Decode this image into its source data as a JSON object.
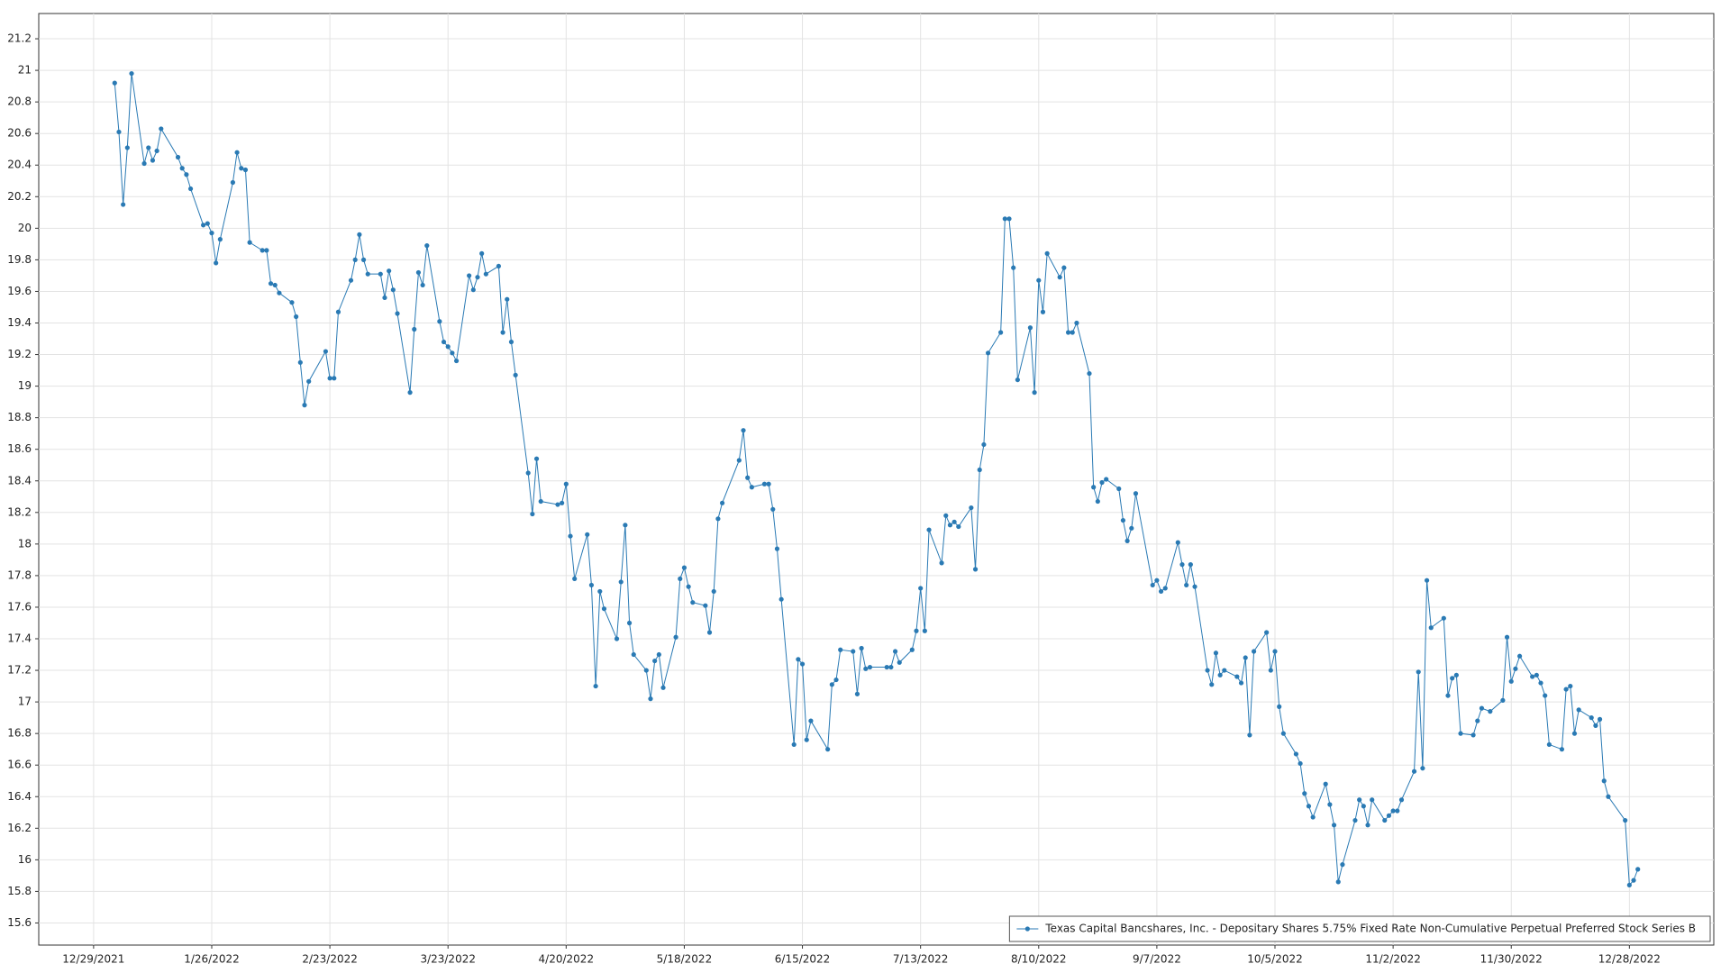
{
  "chart_data": {
    "type": "line",
    "x": [
      "2022-01-03",
      "2022-01-04",
      "2022-01-05",
      "2022-01-06",
      "2022-01-07",
      "2022-01-10",
      "2022-01-11",
      "2022-01-12",
      "2022-01-13",
      "2022-01-14",
      "2022-01-18",
      "2022-01-19",
      "2022-01-20",
      "2022-01-21",
      "2022-01-24",
      "2022-01-25",
      "2022-01-26",
      "2022-01-27",
      "2022-01-28",
      "2022-01-31",
      "2022-02-01",
      "2022-02-02",
      "2022-02-03",
      "2022-02-04",
      "2022-02-07",
      "2022-02-08",
      "2022-02-09",
      "2022-02-10",
      "2022-02-11",
      "2022-02-14",
      "2022-02-15",
      "2022-02-16",
      "2022-02-17",
      "2022-02-18",
      "2022-02-22",
      "2022-02-23",
      "2022-02-24",
      "2022-02-25",
      "2022-02-28",
      "2022-03-01",
      "2022-03-02",
      "2022-03-03",
      "2022-03-04",
      "2022-03-07",
      "2022-03-08",
      "2022-03-09",
      "2022-03-10",
      "2022-03-11",
      "2022-03-14",
      "2022-03-15",
      "2022-03-16",
      "2022-03-17",
      "2022-03-18",
      "2022-03-21",
      "2022-03-22",
      "2022-03-23",
      "2022-03-24",
      "2022-03-25",
      "2022-03-28",
      "2022-03-29",
      "2022-03-30",
      "2022-03-31",
      "2022-04-01",
      "2022-04-04",
      "2022-04-05",
      "2022-04-06",
      "2022-04-07",
      "2022-04-08",
      "2022-04-11",
      "2022-04-12",
      "2022-04-13",
      "2022-04-14",
      "2022-04-18",
      "2022-04-19",
      "2022-04-20",
      "2022-04-21",
      "2022-04-22",
      "2022-04-25",
      "2022-04-26",
      "2022-04-27",
      "2022-04-28",
      "2022-04-29",
      "2022-05-02",
      "2022-05-03",
      "2022-05-04",
      "2022-05-05",
      "2022-05-06",
      "2022-05-09",
      "2022-05-10",
      "2022-05-11",
      "2022-05-12",
      "2022-05-13",
      "2022-05-16",
      "2022-05-17",
      "2022-05-18",
      "2022-05-19",
      "2022-05-20",
      "2022-05-23",
      "2022-05-24",
      "2022-05-25",
      "2022-05-26",
      "2022-05-27",
      "2022-05-31",
      "2022-06-01",
      "2022-06-02",
      "2022-06-03",
      "2022-06-06",
      "2022-06-07",
      "2022-06-08",
      "2022-06-09",
      "2022-06-10",
      "2022-06-13",
      "2022-06-14",
      "2022-06-15",
      "2022-06-16",
      "2022-06-17",
      "2022-06-21",
      "2022-06-22",
      "2022-06-23",
      "2022-06-24",
      "2022-06-27",
      "2022-06-28",
      "2022-06-29",
      "2022-06-30",
      "2022-07-01",
      "2022-07-05",
      "2022-07-06",
      "2022-07-07",
      "2022-07-08",
      "2022-07-11",
      "2022-07-12",
      "2022-07-13",
      "2022-07-14",
      "2022-07-15",
      "2022-07-18",
      "2022-07-19",
      "2022-07-20",
      "2022-07-21",
      "2022-07-22",
      "2022-07-25",
      "2022-07-26",
      "2022-07-27",
      "2022-07-28",
      "2022-07-29",
      "2022-08-01",
      "2022-08-02",
      "2022-08-03",
      "2022-08-04",
      "2022-08-05",
      "2022-08-08",
      "2022-08-09",
      "2022-08-10",
      "2022-08-11",
      "2022-08-12",
      "2022-08-15",
      "2022-08-16",
      "2022-08-17",
      "2022-08-18",
      "2022-08-19",
      "2022-08-22",
      "2022-08-23",
      "2022-08-24",
      "2022-08-25",
      "2022-08-26",
      "2022-08-29",
      "2022-08-30",
      "2022-08-31",
      "2022-09-01",
      "2022-09-02",
      "2022-09-06",
      "2022-09-07",
      "2022-09-08",
      "2022-09-09",
      "2022-09-12",
      "2022-09-13",
      "2022-09-14",
      "2022-09-15",
      "2022-09-16",
      "2022-09-19",
      "2022-09-20",
      "2022-09-21",
      "2022-09-22",
      "2022-09-23",
      "2022-09-26",
      "2022-09-27",
      "2022-09-28",
      "2022-09-29",
      "2022-09-30",
      "2022-10-03",
      "2022-10-04",
      "2022-10-05",
      "2022-10-06",
      "2022-10-07",
      "2022-10-10",
      "2022-10-11",
      "2022-10-12",
      "2022-10-13",
      "2022-10-14",
      "2022-10-17",
      "2022-10-18",
      "2022-10-19",
      "2022-10-20",
      "2022-10-21",
      "2022-10-24",
      "2022-10-25",
      "2022-10-26",
      "2022-10-27",
      "2022-10-28",
      "2022-10-31",
      "2022-11-01",
      "2022-11-02",
      "2022-11-03",
      "2022-11-04",
      "2022-11-07",
      "2022-11-08",
      "2022-11-09",
      "2022-11-10",
      "2022-11-11",
      "2022-11-14",
      "2022-11-15",
      "2022-11-16",
      "2022-11-17",
      "2022-11-18",
      "2022-11-21",
      "2022-11-22",
      "2022-11-23",
      "2022-11-25",
      "2022-11-28",
      "2022-11-29",
      "2022-11-30",
      "2022-12-01",
      "2022-12-02",
      "2022-12-05",
      "2022-12-06",
      "2022-12-07",
      "2022-12-08",
      "2022-12-09",
      "2022-12-12",
      "2022-12-13",
      "2022-12-14",
      "2022-12-15",
      "2022-12-16",
      "2022-12-19",
      "2022-12-20",
      "2022-12-21",
      "2022-12-22",
      "2022-12-23",
      "2022-12-27",
      "2022-12-28",
      "2022-12-29",
      "2022-12-30"
    ],
    "series": [
      {
        "name": "Texas Capital Bancshares, Inc. - Depositary Shares 5.75% Fixed Rate Non-Cumulative Perpetual Preferred Stock Series B",
        "color": "#2a7ab4",
        "values": [
          20.92,
          20.61,
          20.15,
          20.51,
          20.98,
          20.41,
          20.51,
          20.43,
          20.49,
          20.63,
          20.45,
          20.38,
          20.34,
          20.25,
          20.02,
          20.03,
          19.97,
          19.78,
          19.93,
          20.29,
          20.48,
          20.38,
          20.37,
          19.91,
          19.86,
          19.86,
          19.65,
          19.64,
          19.59,
          19.53,
          19.44,
          19.15,
          18.88,
          19.03,
          19.22,
          19.05,
          19.05,
          19.47,
          19.67,
          19.8,
          19.96,
          19.8,
          19.71,
          19.71,
          19.56,
          19.73,
          19.61,
          19.46,
          18.96,
          19.36,
          19.72,
          19.64,
          19.89,
          19.41,
          19.28,
          19.25,
          19.21,
          19.16,
          19.7,
          19.61,
          19.69,
          19.84,
          19.71,
          19.76,
          19.34,
          19.55,
          19.28,
          19.07,
          18.45,
          18.19,
          18.54,
          18.27,
          18.25,
          18.26,
          18.38,
          18.05,
          17.78,
          18.06,
          17.74,
          17.1,
          17.7,
          17.59,
          17.4,
          17.76,
          18.12,
          17.5,
          17.3,
          17.2,
          17.02,
          17.26,
          17.3,
          17.09,
          17.41,
          17.78,
          17.85,
          17.73,
          17.63,
          17.61,
          17.44,
          17.7,
          18.16,
          18.26,
          18.53,
          18.72,
          18.42,
          18.36,
          18.38,
          18.38,
          18.22,
          17.97,
          17.65,
          16.73,
          17.27,
          17.24,
          16.76,
          16.88,
          16.7,
          17.11,
          17.14,
          17.33,
          17.32,
          17.05,
          17.34,
          17.21,
          17.22,
          17.22,
          17.22,
          17.32,
          17.25,
          17.33,
          17.45,
          17.72,
          17.45,
          18.09,
          17.88,
          18.18,
          18.12,
          18.14,
          18.11,
          18.23,
          17.84,
          18.47,
          18.63,
          19.21,
          19.34,
          20.06,
          20.06,
          19.75,
          19.04,
          19.37,
          18.96,
          19.67,
          19.47,
          19.84,
          19.69,
          19.75,
          19.34,
          19.34,
          19.4,
          19.08,
          18.36,
          18.27,
          18.39,
          18.41,
          18.35,
          18.15,
          18.02,
          18.1,
          18.32,
          17.74,
          17.77,
          17.7,
          17.72,
          18.01,
          17.87,
          17.74,
          17.87,
          17.73,
          17.2,
          17.11,
          17.31,
          17.17,
          17.2,
          17.16,
          17.12,
          17.28,
          16.79,
          17.32,
          17.44,
          17.2,
          17.32,
          16.97,
          16.8,
          16.67,
          16.61,
          16.42,
          16.34,
          16.27,
          16.48,
          16.35,
          16.22,
          15.86,
          15.97,
          16.25,
          16.38,
          16.34,
          16.22,
          16.38,
          16.25,
          16.28,
          16.31,
          16.31,
          16.38,
          16.56,
          17.19,
          16.58,
          17.77,
          17.47,
          17.53,
          17.04,
          17.15,
          17.17,
          16.8,
          16.79,
          16.88,
          16.96,
          16.94,
          17.01,
          17.41,
          17.13,
          17.21,
          17.29,
          17.16,
          17.17,
          17.12,
          17.04,
          16.73,
          16.7,
          17.08,
          17.1,
          16.8,
          16.95,
          16.9,
          16.85,
          16.89,
          16.5,
          16.4,
          16.25,
          15.84,
          15.87,
          15.94
        ]
      }
    ],
    "xlim": [
      "2021-12-16",
      "2023-01-17"
    ],
    "xticks": [
      {
        "value": "2021-12-29",
        "label": "12/29/2021"
      },
      {
        "value": "2022-01-26",
        "label": "1/26/2022"
      },
      {
        "value": "2022-02-23",
        "label": "2/23/2022"
      },
      {
        "value": "2022-03-23",
        "label": "3/23/2022"
      },
      {
        "value": "2022-04-20",
        "label": "4/20/2022"
      },
      {
        "value": "2022-05-18",
        "label": "5/18/2022"
      },
      {
        "value": "2022-06-15",
        "label": "6/15/2022"
      },
      {
        "value": "2022-07-13",
        "label": "7/13/2022"
      },
      {
        "value": "2022-08-10",
        "label": "8/10/2022"
      },
      {
        "value": "2022-09-07",
        "label": "9/7/2022"
      },
      {
        "value": "2022-10-05",
        "label": "10/5/2022"
      },
      {
        "value": "2022-11-02",
        "label": "11/2/2022"
      },
      {
        "value": "2022-11-30",
        "label": "11/30/2022"
      },
      {
        "value": "2022-12-28",
        "label": "12/28/2022"
      }
    ],
    "ylim": [
      15.46,
      21.36
    ],
    "yticks": [
      15.6,
      15.8,
      16,
      16.2,
      16.4,
      16.6,
      16.8,
      17,
      17.2,
      17.4,
      17.6,
      17.8,
      18,
      18.2,
      18.4,
      18.6,
      18.8,
      19,
      19.2,
      19.4,
      19.6,
      19.8,
      20,
      20.2,
      20.4,
      20.6,
      20.8,
      21,
      21.2
    ],
    "grid": true,
    "legend": "lower right"
  }
}
